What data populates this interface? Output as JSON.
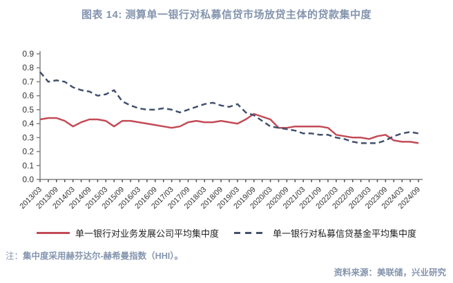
{
  "title": "图表 14: 测算单一银行对私募信贷市场放贷主体的贷款集中度",
  "note": {
    "prefix": "注：",
    "body": "集中度采用赫芬达尔-赫希曼指数（HHI）。"
  },
  "source": "资料来源：美联储，兴业研究",
  "colors": {
    "title_text": "#8494ae",
    "series_solid": "#c24a55",
    "series_dashed": "#42506e",
    "axis": "#808080",
    "tick_text": "#333333"
  },
  "chart_data": {
    "type": "line",
    "title": "测算单一银行对私募信贷市场放贷主体的贷款集中度",
    "xlabel": "",
    "ylabel": "",
    "ylim": [
      0,
      0.9
    ],
    "ytick_step": 0.1,
    "grid": false,
    "legend_position": "bottom",
    "x_label_every": 2,
    "x": [
      "2013/03",
      "2013/06",
      "2013/09",
      "2013/12",
      "2014/03",
      "2014/06",
      "2014/09",
      "2014/12",
      "2015/03",
      "2015/06",
      "2015/09",
      "2015/12",
      "2016/03",
      "2016/06",
      "2016/09",
      "2016/12",
      "2017/03",
      "2017/06",
      "2017/09",
      "2017/12",
      "2018/03",
      "2018/06",
      "2018/09",
      "2018/12",
      "2019/03",
      "2019/06",
      "2019/09",
      "2019/12",
      "2020/03",
      "2020/06",
      "2020/09",
      "2020/12",
      "2021/03",
      "2021/06",
      "2021/09",
      "2021/12",
      "2022/03",
      "2022/06",
      "2022/09",
      "2022/12",
      "2023/03",
      "2023/06",
      "2023/09",
      "2023/12",
      "2024/03",
      "2024/06",
      "2024/09"
    ],
    "series": [
      {
        "name": "单一银行对业务发展公司平均集中度",
        "style": "solid",
        "color": "#c24a55",
        "values": [
          0.43,
          0.44,
          0.44,
          0.42,
          0.38,
          0.41,
          0.43,
          0.43,
          0.42,
          0.38,
          0.42,
          0.42,
          0.41,
          0.4,
          0.39,
          0.38,
          0.37,
          0.38,
          0.41,
          0.42,
          0.41,
          0.41,
          0.42,
          0.41,
          0.4,
          0.43,
          0.47,
          0.45,
          0.43,
          0.37,
          0.37,
          0.38,
          0.38,
          0.38,
          0.38,
          0.37,
          0.32,
          0.31,
          0.3,
          0.3,
          0.29,
          0.31,
          0.32,
          0.28,
          0.27,
          0.27,
          0.26
        ]
      },
      {
        "name": "单一银行对私募信贷基金平均集中度",
        "style": "dashed",
        "color": "#42506e",
        "values": [
          0.77,
          0.7,
          0.71,
          0.7,
          0.66,
          0.64,
          0.63,
          0.6,
          0.61,
          0.64,
          0.56,
          0.53,
          0.51,
          0.5,
          0.5,
          0.51,
          0.5,
          0.48,
          0.5,
          0.52,
          0.54,
          0.55,
          0.53,
          0.52,
          0.54,
          0.48,
          0.46,
          0.42,
          0.38,
          0.37,
          0.36,
          0.35,
          0.33,
          0.33,
          0.32,
          0.32,
          0.3,
          0.29,
          0.27,
          0.26,
          0.26,
          0.26,
          0.28,
          0.31,
          0.33,
          0.34,
          0.33
        ]
      }
    ]
  }
}
